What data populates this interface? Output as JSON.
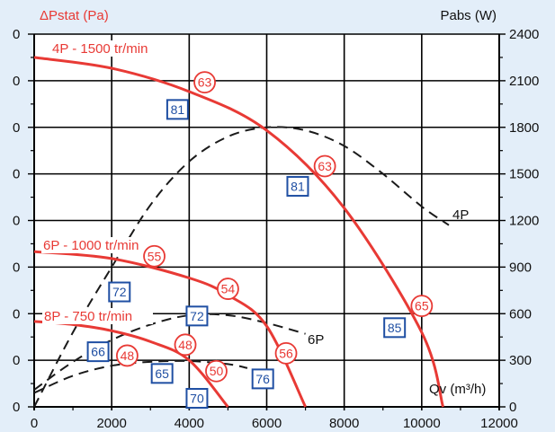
{
  "chart_data": {
    "type": "line",
    "left_axis_title": "ΔPstat (Pa)",
    "right_axis_title": "Pabs (W)",
    "x_axis_title": "Qv (m³/h)",
    "x_ticks": [
      0,
      2000,
      4000,
      6000,
      8000,
      10000,
      12000
    ],
    "x_tick_labels": [
      "0",
      "2000",
      "4000",
      "6000",
      "8000",
      "10000",
      "12000"
    ],
    "xlim": [
      0,
      12000
    ],
    "left_tick_labels": [
      "0",
      "0",
      "0",
      "0",
      "0",
      "0",
      "0",
      "0",
      "0"
    ],
    "right_ticks": [
      0,
      300,
      600,
      900,
      1200,
      1500,
      1800,
      2100,
      2400
    ],
    "right_tick_labels": [
      "0",
      "300",
      "600",
      "900",
      "1200",
      "1500",
      "1800",
      "2100",
      "2400"
    ],
    "right_ylim": [
      0,
      2400
    ],
    "grid": true,
    "pressure_series": [
      {
        "name": "4P - 1500 tr/min",
        "color": "#e83a35",
        "points": [
          [
            0,
            2250
          ],
          [
            2000,
            2180
          ],
          [
            4000,
            2030
          ],
          [
            6000,
            1780
          ],
          [
            8000,
            1280
          ],
          [
            10000,
            480
          ],
          [
            10550,
            0
          ]
        ]
      },
      {
        "name": "6P - 1000 tr/min",
        "color": "#e83a35",
        "points": [
          [
            0,
            1000
          ],
          [
            2000,
            955
          ],
          [
            4000,
            830
          ],
          [
            5000,
            720
          ],
          [
            6000,
            520
          ],
          [
            7000,
            0
          ]
        ]
      },
      {
        "name": "8P - 750 tr/min",
        "color": "#e83a35",
        "points": [
          [
            0,
            550
          ],
          [
            1000,
            530
          ],
          [
            2000,
            490
          ],
          [
            3000,
            420
          ],
          [
            4000,
            300
          ],
          [
            5000,
            0
          ]
        ]
      }
    ],
    "power_series": [
      {
        "name": "4P",
        "color": "#1a1a1a",
        "points": [
          [
            0,
            0
          ],
          [
            1000,
            480
          ],
          [
            2000,
            900
          ],
          [
            3000,
            1300
          ],
          [
            4000,
            1580
          ],
          [
            5000,
            1740
          ],
          [
            6000,
            1800
          ],
          [
            7000,
            1780
          ],
          [
            8000,
            1680
          ],
          [
            9000,
            1500
          ],
          [
            10000,
            1290
          ],
          [
            10700,
            1170
          ]
        ]
      },
      {
        "name": "6P",
        "color": "#1a1a1a",
        "points": [
          [
            0,
            110
          ],
          [
            1000,
            290
          ],
          [
            2000,
            430
          ],
          [
            3000,
            530
          ],
          [
            4000,
            590
          ],
          [
            5000,
            590
          ],
          [
            6000,
            540
          ],
          [
            7000,
            470
          ]
        ]
      },
      {
        "name": "8P",
        "color": "#1a1a1a",
        "points": [
          [
            0,
            90
          ],
          [
            1000,
            200
          ],
          [
            2000,
            265
          ],
          [
            3000,
            290
          ],
          [
            4000,
            295
          ],
          [
            5000,
            275
          ],
          [
            5500,
            250
          ]
        ]
      }
    ],
    "efficiency_labels": [
      {
        "text": "63",
        "x": 4400,
        "y": 2090
      },
      {
        "text": "63",
        "x": 7500,
        "y": 1550
      },
      {
        "text": "65",
        "x": 10000,
        "y": 650
      },
      {
        "text": "55",
        "x": 3100,
        "y": 970
      },
      {
        "text": "54",
        "x": 5000,
        "y": 760
      },
      {
        "text": "56",
        "x": 6500,
        "y": 345
      },
      {
        "text": "48",
        "x": 2400,
        "y": 330
      },
      {
        "text": "48",
        "x": 3900,
        "y": 400
      },
      {
        "text": "50",
        "x": 4700,
        "y": 230
      }
    ],
    "noise_labels": [
      {
        "text": "81",
        "x": 3700,
        "y": 1915
      },
      {
        "text": "81",
        "x": 6800,
        "y": 1420
      },
      {
        "text": "85",
        "x": 9300,
        "y": 510
      },
      {
        "text": "72",
        "x": 2200,
        "y": 740
      },
      {
        "text": "72",
        "x": 4200,
        "y": 585
      },
      {
        "text": "76",
        "x": 5900,
        "y": 180
      },
      {
        "text": "66",
        "x": 1650,
        "y": 355
      },
      {
        "text": "65",
        "x": 3300,
        "y": 215
      },
      {
        "text": "70",
        "x": 4200,
        "y": 55
      }
    ]
  }
}
